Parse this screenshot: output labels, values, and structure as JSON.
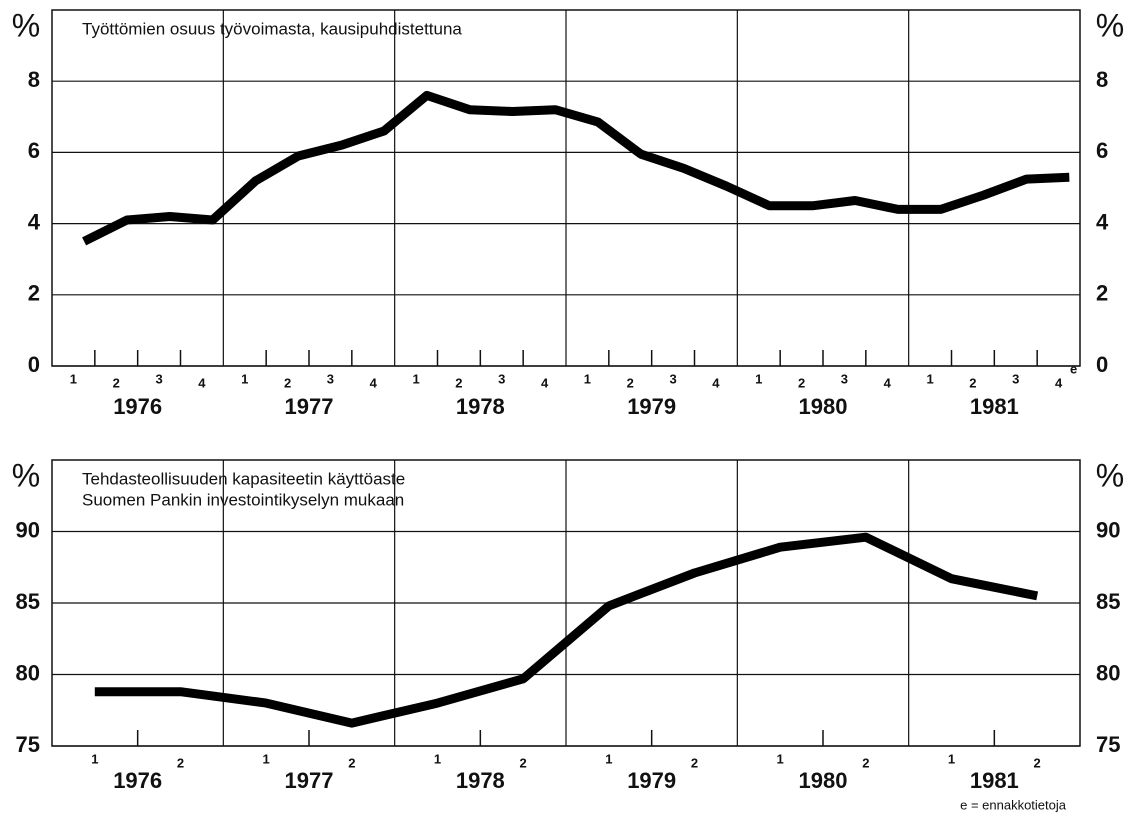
{
  "chart_data": [
    {
      "type": "line",
      "title": [
        "Työttömien osuus työvoimasta, kausipuhdistettuna"
      ],
      "unit": "%",
      "categories": [
        "1",
        "2",
        "3",
        "4",
        "1",
        "2",
        "3",
        "4",
        "1",
        "2",
        "3",
        "4",
        "1",
        "2",
        "3",
        "4",
        "1",
        "2",
        "3",
        "4",
        "1",
        "2",
        "3",
        "4"
      ],
      "years": [
        "1976",
        "1977",
        "1978",
        "1979",
        "1980",
        "1981"
      ],
      "series": [
        {
          "color": "#000000",
          "values": [
            3.5,
            4.1,
            4.2,
            4.1,
            5.2,
            5.9,
            6.2,
            6.6,
            7.6,
            7.2,
            7.15,
            7.2,
            6.85,
            5.95,
            5.55,
            5.05,
            4.5,
            4.5,
            4.65,
            4.4,
            4.4,
            4.8,
            5.25,
            5.3
          ]
        }
      ],
      "ylim": [
        0,
        10
      ],
      "yticks": [
        0,
        2,
        4,
        6,
        8
      ],
      "grid": true,
      "note_marker": "e"
    },
    {
      "type": "line",
      "title": [
        "Tehdasteollisuuden kapasiteetin käyttöaste",
        "Suomen Pankin investointikyselyn mukaan"
      ],
      "unit": "%",
      "categories": [
        "1",
        "2",
        "1",
        "2",
        "1",
        "2",
        "1",
        "2",
        "1",
        "2",
        "1",
        "2"
      ],
      "years": [
        "1976",
        "1977",
        "1978",
        "1979",
        "1980",
        "1981"
      ],
      "series": [
        {
          "color": "#000000",
          "values": [
            78.8,
            78.8,
            78.0,
            76.6,
            78.0,
            79.7,
            84.8,
            87.1,
            88.9,
            89.6,
            86.7,
            85.5
          ]
        }
      ],
      "ylim": [
        75,
        95
      ],
      "yticks": [
        75,
        80,
        85,
        90
      ],
      "grid": true
    }
  ],
  "footnote": "e = ennakkotietoja"
}
